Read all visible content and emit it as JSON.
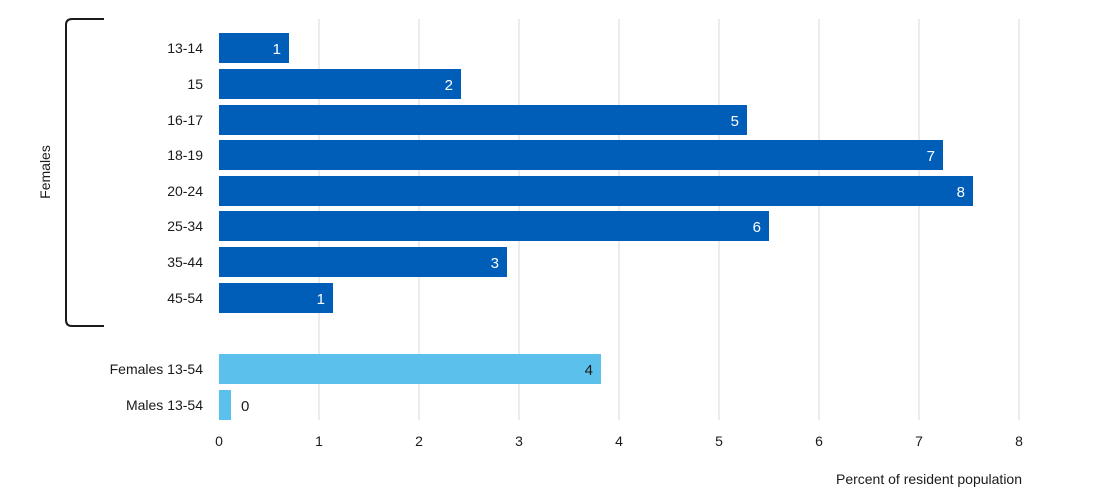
{
  "chart_data": {
    "type": "bar",
    "orientation": "horizontal",
    "categories": [
      "13-14",
      "15",
      "16-17",
      "18-19",
      "20-24",
      "25-34",
      "35-44",
      "45-54",
      "Females 13-54",
      "Males 13-54"
    ],
    "values": [
      0.7,
      2.42,
      5.28,
      7.24,
      7.54,
      5.5,
      2.88,
      1.14,
      3.82,
      0.12
    ],
    "data_labels": [
      "1",
      "2",
      "5",
      "7",
      "8",
      "6",
      "3",
      "1",
      "4",
      "0"
    ],
    "bar_colors": [
      "#005EB8",
      "#005EB8",
      "#005EB8",
      "#005EB8",
      "#005EB8",
      "#005EB8",
      "#005EB8",
      "#005EB8",
      "#5BC0EB",
      "#5BC0EB"
    ],
    "group_label": "Females",
    "grouped_categories": 8,
    "xlabel": "Percent of resident population",
    "ylabel": "",
    "xlim": [
      0,
      8
    ],
    "xticks": [
      "0",
      "1",
      "2",
      "3",
      "4",
      "5",
      "6",
      "7",
      "8"
    ],
    "grid": "vertical"
  }
}
